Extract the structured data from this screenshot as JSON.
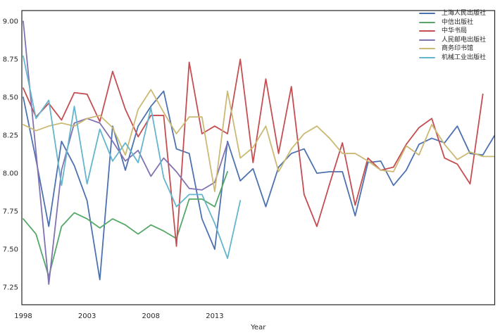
{
  "chart_data": {
    "type": "line",
    "title": "",
    "xlabel": "Year",
    "ylabel": "",
    "grid": false,
    "legend_position": "upper right",
    "background": "#ffffff",
    "axis_color": "#262626",
    "xlim": [
      1997.89,
      2034.93
    ],
    "ylim": [
      7.135,
      9.07
    ],
    "x_tick_labels": [
      "1998",
      "2003",
      "2008",
      "2013"
    ],
    "x_tick_values": [
      1998,
      2003,
      2008,
      2013
    ],
    "y_tick_labels": [
      "9.00",
      "8.75",
      "8.50",
      "8.25",
      "8.00",
      "7.75",
      "7.50",
      "7.25"
    ],
    "y_tick_values": [
      9.0,
      8.75,
      8.5,
      8.25,
      8.0,
      7.75,
      7.5,
      7.25
    ],
    "x_unit": "year",
    "series": [
      {
        "name": "上海人民出版社",
        "color": "#4C72B0",
        "x_start": 1998,
        "values": [
          8.5,
          8.09,
          7.65,
          8.21,
          8.05,
          7.82,
          7.3,
          8.31,
          8.02,
          8.31,
          8.44,
          8.54,
          8.16,
          8.13,
          7.7,
          7.5,
          8.21,
          7.95,
          8.03,
          7.78,
          8.04,
          8.13,
          8.16,
          8.0,
          8.01,
          8.01,
          7.72,
          8.07,
          8.08,
          7.92,
          8.02,
          8.19,
          8.23,
          8.2,
          8.31,
          8.13,
          8.12,
          8.26
        ]
      },
      {
        "name": "中信出版社",
        "color": "#55A868",
        "x_start": 1998,
        "values": [
          7.7,
          7.6,
          7.32,
          7.65,
          7.74,
          7.7,
          7.64,
          7.7,
          7.66,
          7.6,
          7.66,
          7.62,
          7.57,
          7.83,
          7.83,
          7.78,
          8.01
        ]
      },
      {
        "name": "中华书局",
        "color": "#C44E52",
        "x_start": 1998,
        "values": [
          8.56,
          8.37,
          8.46,
          8.35,
          8.53,
          8.52,
          8.34,
          8.67,
          8.42,
          8.24,
          8.38,
          8.38,
          7.52,
          8.73,
          8.26,
          8.31,
          8.26,
          8.75,
          8.07,
          8.62,
          8.13,
          8.57,
          7.86,
          7.65,
          7.93,
          8.2,
          7.79,
          8.1,
          8.02,
          8.04,
          8.19,
          8.3,
          8.36,
          8.1,
          8.06,
          7.93,
          8.52
        ]
      },
      {
        "name": "人民邮电出版社",
        "color": "#8172B2",
        "x_start": 1998,
        "values": [
          9.0,
          8.14,
          7.27,
          8.02,
          8.33,
          8.36,
          8.33,
          8.21,
          8.08,
          8.15,
          7.98,
          8.1,
          8.01,
          7.9,
          7.89,
          7.94,
          8.2
        ]
      },
      {
        "name": "商务印书馆",
        "color": "#CCB974",
        "x_start": 1998,
        "values": [
          8.32,
          8.28,
          8.31,
          8.33,
          8.31,
          8.36,
          8.38,
          8.3,
          8.12,
          8.42,
          8.55,
          8.4,
          8.26,
          8.37,
          8.37,
          7.88,
          8.54,
          8.1,
          8.17,
          8.31,
          8.01,
          8.16,
          8.26,
          8.31,
          8.23,
          8.13,
          8.13,
          8.08,
          8.02,
          8.01,
          8.18,
          8.12,
          8.32,
          8.19,
          8.09,
          8.14,
          8.11,
          8.11
        ]
      },
      {
        "name": "机械工业出版社",
        "color": "#64B5CD",
        "x_start": 1998,
        "values": [
          8.77,
          8.36,
          8.48,
          7.92,
          8.44,
          7.93,
          8.29,
          8.08,
          8.2,
          8.07,
          8.43,
          7.97,
          7.78,
          7.86,
          7.86,
          7.67,
          7.44,
          7.82
        ]
      }
    ]
  }
}
